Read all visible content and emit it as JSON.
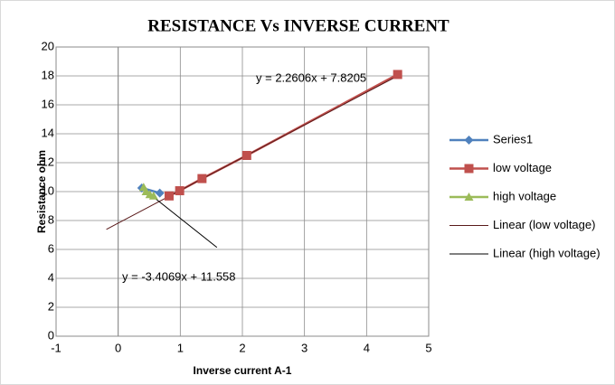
{
  "chart_data": {
    "type": "scatter",
    "title": "RESISTANCE  Vs  INVERSE CURRENT",
    "x_label": "Inverse current A-1",
    "y_label": "Resistance ohm",
    "xlim": [
      -1,
      5
    ],
    "ylim": [
      0,
      20
    ],
    "xticks": [
      -1,
      0,
      1,
      2,
      3,
      4,
      5
    ],
    "yticks": [
      0,
      2,
      4,
      6,
      8,
      10,
      12,
      14,
      16,
      18,
      20
    ],
    "grid": true,
    "legend": "right",
    "annotations": [
      "y = 2.2606x + 7.8205",
      "y = -3.4069x + 11.558"
    ],
    "series": [
      {
        "name": "Series1",
        "color": "#4f81bd",
        "marker": "diamond",
        "line": true,
        "x": [
          0.38,
          0.67
        ],
        "values": [
          10.25,
          9.9
        ]
      },
      {
        "name": "low voltage",
        "color": "#c0504d",
        "marker": "square",
        "line": true,
        "x": [
          0.82,
          0.99,
          1.35,
          2.07,
          4.5
        ],
        "values": [
          9.7,
          10.06,
          10.9,
          12.5,
          18.1
        ]
      },
      {
        "name": "high voltage",
        "color": "#9bbb59",
        "marker": "triangle",
        "line": true,
        "x": [
          0.41,
          0.45,
          0.51,
          0.57
        ],
        "values": [
          10.3,
          10.0,
          9.8,
          9.7
        ]
      },
      {
        "name": "Linear (low voltage)",
        "color": "#5a1a1a",
        "marker": "none",
        "line": true,
        "x": [
          -0.19,
          4.5
        ],
        "values": [
          7.39,
          18.0
        ]
      },
      {
        "name": "Linear (high voltage)",
        "color": "#000000",
        "marker": "none",
        "line": true,
        "x": [
          0.35,
          1.59
        ],
        "values": [
          10.37,
          6.14
        ]
      }
    ]
  }
}
